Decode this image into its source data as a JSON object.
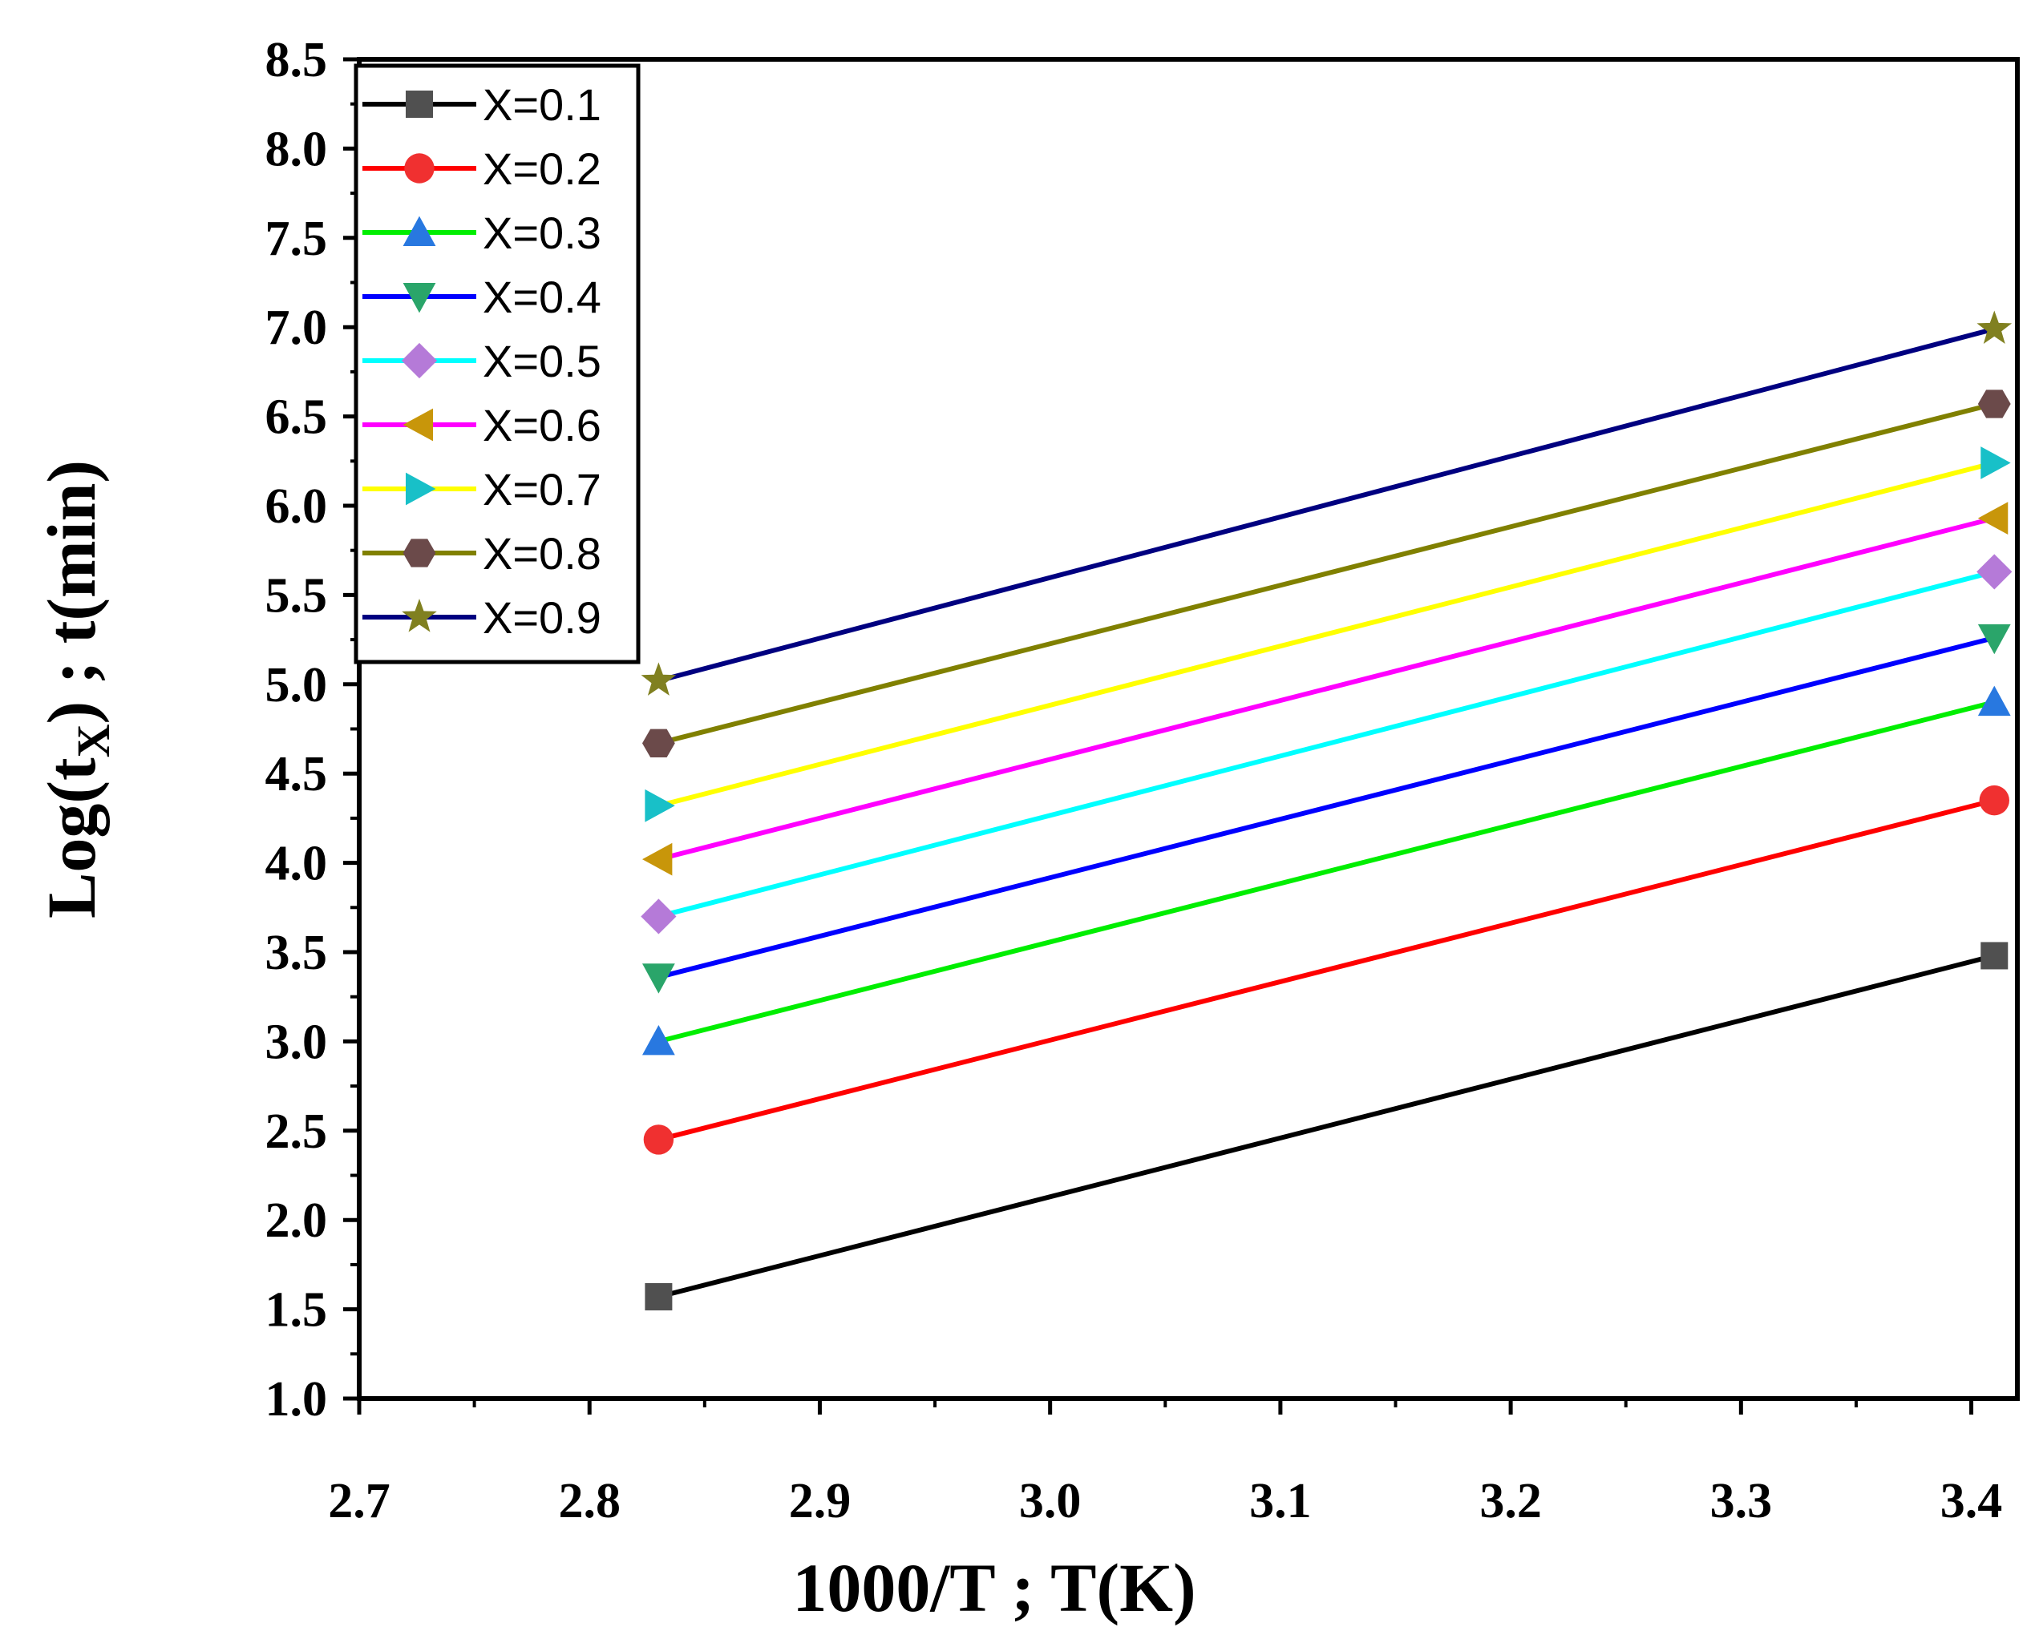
{
  "chart_data": {
    "type": "line",
    "title": "",
    "xlabel": "1000/T ; T(K)",
    "ylabel_parts": {
      "prefix": "Log(t",
      "subscript": "X",
      "suffix": ") ; t(min)"
    },
    "xlim": [
      2.7,
      3.42
    ],
    "ylim": [
      1.0,
      8.5
    ],
    "xticks": [
      2.7,
      2.8,
      2.9,
      3.0,
      3.1,
      3.2,
      3.3,
      3.4
    ],
    "xtick_labels": [
      "2.7",
      "2.8",
      "2.9",
      "3.0",
      "3.1",
      "3.2",
      "3.3",
      "3.4"
    ],
    "yticks": [
      1.0,
      1.5,
      2.0,
      2.5,
      3.0,
      3.5,
      4.0,
      4.5,
      5.0,
      5.5,
      6.0,
      6.5,
      7.0,
      7.5,
      8.0,
      8.5
    ],
    "ytick_labels": [
      "1.0",
      "1.5",
      "2.0",
      "2.5",
      "3.0",
      "3.5",
      "4.0",
      "4.5",
      "5.0",
      "5.5",
      "6.0",
      "6.5",
      "7.0",
      "7.5",
      "8.0",
      "8.5"
    ],
    "legend_position": "top-left",
    "grid": false,
    "x": [
      2.83,
      3.41
    ],
    "series": [
      {
        "name": "X=0.1",
        "values": [
          1.57,
          3.48
        ],
        "color": "#000000",
        "marker_color": "#505050",
        "marker": "square"
      },
      {
        "name": "X=0.2",
        "values": [
          2.45,
          4.35
        ],
        "color": "#ff0000",
        "marker_color": "#f03030",
        "marker": "circle"
      },
      {
        "name": "X=0.3",
        "values": [
          3.0,
          4.9
        ],
        "color": "#00ee00",
        "marker_color": "#2878e0",
        "marker": "triangle-up"
      },
      {
        "name": "X=0.4",
        "values": [
          3.36,
          5.26
        ],
        "color": "#0000ff",
        "marker_color": "#2aa56a",
        "marker": "triangle-down"
      },
      {
        "name": "X=0.5",
        "values": [
          3.7,
          5.63
        ],
        "color": "#00ffff",
        "marker_color": "#b57ad8",
        "marker": "diamond"
      },
      {
        "name": "X=0.6",
        "values": [
          4.02,
          5.93
        ],
        "color": "#ff00ff",
        "marker_color": "#c8960a",
        "marker": "triangle-left"
      },
      {
        "name": "X=0.7",
        "values": [
          4.32,
          6.24
        ],
        "color": "#ffff00",
        "marker_color": "#18c0c8",
        "marker": "triangle-right"
      },
      {
        "name": "X=0.8",
        "values": [
          4.67,
          6.57
        ],
        "color": "#808000",
        "marker_color": "#6b4a4a",
        "marker": "hexagon"
      },
      {
        "name": "X=0.9",
        "values": [
          5.02,
          6.99
        ],
        "color": "#000080",
        "marker_color": "#808020",
        "marker": "star"
      }
    ]
  }
}
